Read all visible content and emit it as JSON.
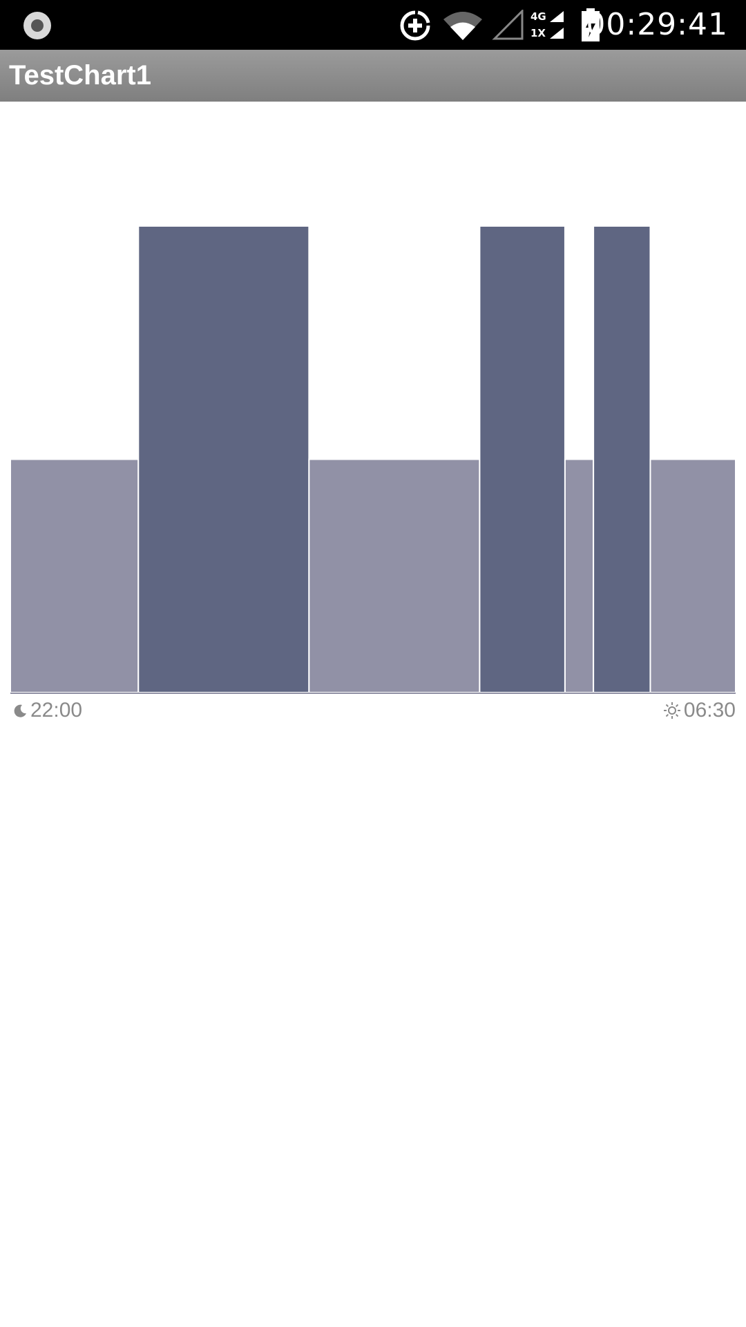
{
  "status_bar": {
    "time": "00:29:41",
    "network_type": "4G",
    "network_type2": "1X",
    "icons": [
      "record-icon",
      "data-saver-icon",
      "wifi-icon",
      "cell-signal-icon",
      "cell-signal-4g-icon",
      "battery-charging-icon"
    ]
  },
  "app": {
    "title": "TestChart1"
  },
  "chart_data": {
    "type": "bar",
    "x_start_label": "22:00",
    "x_end_label": "06:30",
    "x_start_icon": "moon-icon",
    "x_end_icon": "sun-icon",
    "x_range_minutes": [
      0,
      510
    ],
    "segments": [
      {
        "start": 0,
        "end": 90,
        "level": 1
      },
      {
        "start": 90,
        "end": 210,
        "level": 2
      },
      {
        "start": 210,
        "end": 330,
        "level": 1
      },
      {
        "start": 330,
        "end": 390,
        "level": 2
      },
      {
        "start": 390,
        "end": 410,
        "level": 1
      },
      {
        "start": 410,
        "end": 450,
        "level": 2
      },
      {
        "start": 450,
        "end": 510,
        "level": 1
      }
    ],
    "ylim": [
      0,
      2.4
    ],
    "colors": {
      "level_1": "#9191a6",
      "level_2": "#5f6682",
      "divider": "#ffffff",
      "baseline": "#8f8fa3"
    }
  }
}
